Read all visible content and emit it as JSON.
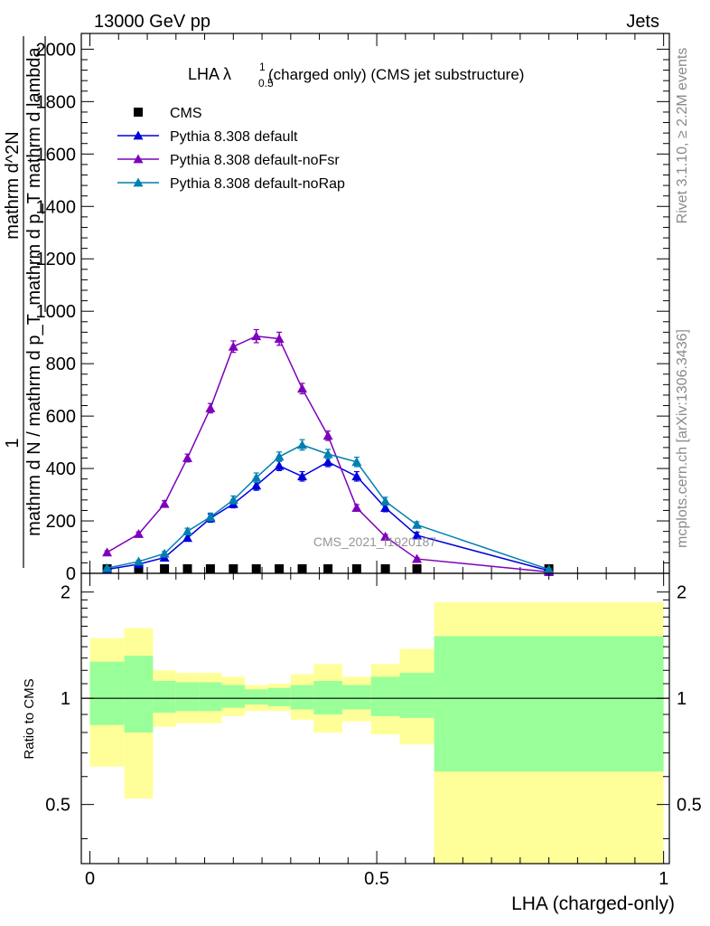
{
  "header": {
    "left": "13000 GeV pp",
    "right": "Jets"
  },
  "title": {
    "main": "LHA λ",
    "sup": "1",
    "sub": "0.5",
    "rest": " (charged only) (CMS jet substructure)"
  },
  "side_labels": {
    "rivet": "Rivet 3.1.10, ≥ 2.2M events",
    "mcplots": "mcplots.cern.ch [arXiv:1306.3436]"
  },
  "watermark": "CMS_2021_I1920187",
  "ylabel_main": {
    "numerator": "1",
    "denominator": "mathrm d N / mathrm d p_T",
    "fraction_num": "mathrm d^2N",
    "fraction_den": "mathrm d p_T mathrm d lambda"
  },
  "ylabel_ratio": "Ratio to CMS",
  "xlabel": "LHA (charged-only)",
  "colors": {
    "cms": "#000000",
    "default": "#0000dd",
    "noFsr": "#7f00bb",
    "noRap": "#007fb0",
    "band_inner": "#99ff99",
    "band_outer": "#ffff99"
  },
  "chart_data": [
    {
      "type": "line",
      "panel": "main",
      "xlim": [
        -0.015,
        1.01
      ],
      "ylim": [
        0,
        2060
      ],
      "yticks": [
        0,
        200,
        400,
        600,
        800,
        1000,
        1200,
        1400,
        1600,
        1800,
        2000
      ],
      "ytick_labels": [
        "0",
        "200",
        "400",
        "600",
        "800",
        "1000",
        "1200",
        "1400",
        "1600",
        "1800",
        "2000"
      ],
      "legend_position": "top-left",
      "x": [
        0.03,
        0.085,
        0.13,
        0.17,
        0.21,
        0.25,
        0.29,
        0.33,
        0.37,
        0.415,
        0.465,
        0.515,
        0.57,
        0.8
      ],
      "series": [
        {
          "name": "CMS",
          "key": "cms",
          "marker": "square",
          "x": [
            0.03,
            0.085,
            0.13,
            0.17,
            0.21,
            0.25,
            0.29,
            0.33,
            0.37,
            0.415,
            0.465,
            0.515,
            0.57,
            0.8
          ],
          "values": [
            0.6,
            1.0,
            1.8,
            2.4,
            2.9,
            3.3,
            3.6,
            3.4,
            3.2,
            2.8,
            2.2,
            1.5,
            0.9,
            0.1
          ]
        },
        {
          "name": "Pythia 8.308 default",
          "key": "default",
          "marker": "triangle",
          "x": [
            0.03,
            0.085,
            0.13,
            0.17,
            0.21,
            0.25,
            0.29,
            0.33,
            0.37,
            0.415,
            0.465,
            0.515,
            0.57,
            0.8
          ],
          "values": [
            15,
            35,
            60,
            135,
            210,
            265,
            335,
            410,
            370,
            425,
            370,
            250,
            145,
            10
          ],
          "errors": [
            3,
            5,
            8,
            12,
            15,
            15,
            18,
            18,
            18,
            18,
            18,
            15,
            12,
            2
          ]
        },
        {
          "name": "Pythia 8.308 default-noFsr",
          "key": "noFsr",
          "marker": "triangle",
          "x": [
            0.03,
            0.085,
            0.13,
            0.17,
            0.21,
            0.25,
            0.29,
            0.33,
            0.37,
            0.415,
            0.465,
            0.515,
            0.57,
            0.8
          ],
          "values": [
            80,
            150,
            265,
            440,
            630,
            865,
            905,
            895,
            705,
            525,
            250,
            140,
            55,
            5
          ],
          "errors": [
            6,
            8,
            12,
            15,
            18,
            22,
            25,
            25,
            20,
            18,
            12,
            8,
            5,
            1
          ]
        },
        {
          "name": "Pythia 8.308 default-noRap",
          "key": "noRap",
          "marker": "triangle",
          "x": [
            0.03,
            0.085,
            0.13,
            0.17,
            0.21,
            0.25,
            0.29,
            0.33,
            0.37,
            0.415,
            0.465,
            0.515,
            0.57,
            0.8
          ],
          "values": [
            20,
            45,
            75,
            160,
            215,
            280,
            365,
            445,
            490,
            455,
            425,
            275,
            185,
            15
          ],
          "errors": [
            3,
            5,
            8,
            12,
            15,
            15,
            18,
            18,
            20,
            18,
            18,
            15,
            12,
            2
          ]
        }
      ]
    },
    {
      "type": "area",
      "panel": "ratio",
      "xlim": [
        -0.015,
        1.01
      ],
      "ylim": [
        0.34,
        2.26
      ],
      "xticks": [
        0,
        0.5,
        1
      ],
      "xtick_labels": [
        "0",
        "0.5",
        "1"
      ],
      "yticks": [
        0.5,
        1,
        2
      ],
      "ytick_labels": [
        "0.5",
        "1",
        "2"
      ],
      "reference_line": 1,
      "bin_edges": [
        0.0,
        0.06,
        0.11,
        0.15,
        0.19,
        0.23,
        0.27,
        0.31,
        0.35,
        0.39,
        0.44,
        0.49,
        0.54,
        0.6,
        1.0
      ],
      "stat_band": {
        "low": [
          0.84,
          0.8,
          0.91,
          0.92,
          0.92,
          0.94,
          0.96,
          0.95,
          0.93,
          0.9,
          0.93,
          0.89,
          0.88,
          0.62
        ],
        "high": [
          1.27,
          1.32,
          1.12,
          1.11,
          1.11,
          1.09,
          1.06,
          1.07,
          1.09,
          1.12,
          1.09,
          1.15,
          1.18,
          1.5
        ]
      },
      "total_band": {
        "low": [
          0.64,
          0.52,
          0.83,
          0.85,
          0.85,
          0.89,
          0.92,
          0.92,
          0.87,
          0.8,
          0.86,
          0.79,
          0.74,
          0.34
        ],
        "high": [
          1.48,
          1.58,
          1.2,
          1.18,
          1.18,
          1.15,
          1.09,
          1.1,
          1.17,
          1.25,
          1.15,
          1.25,
          1.38,
          1.87
        ]
      }
    }
  ]
}
